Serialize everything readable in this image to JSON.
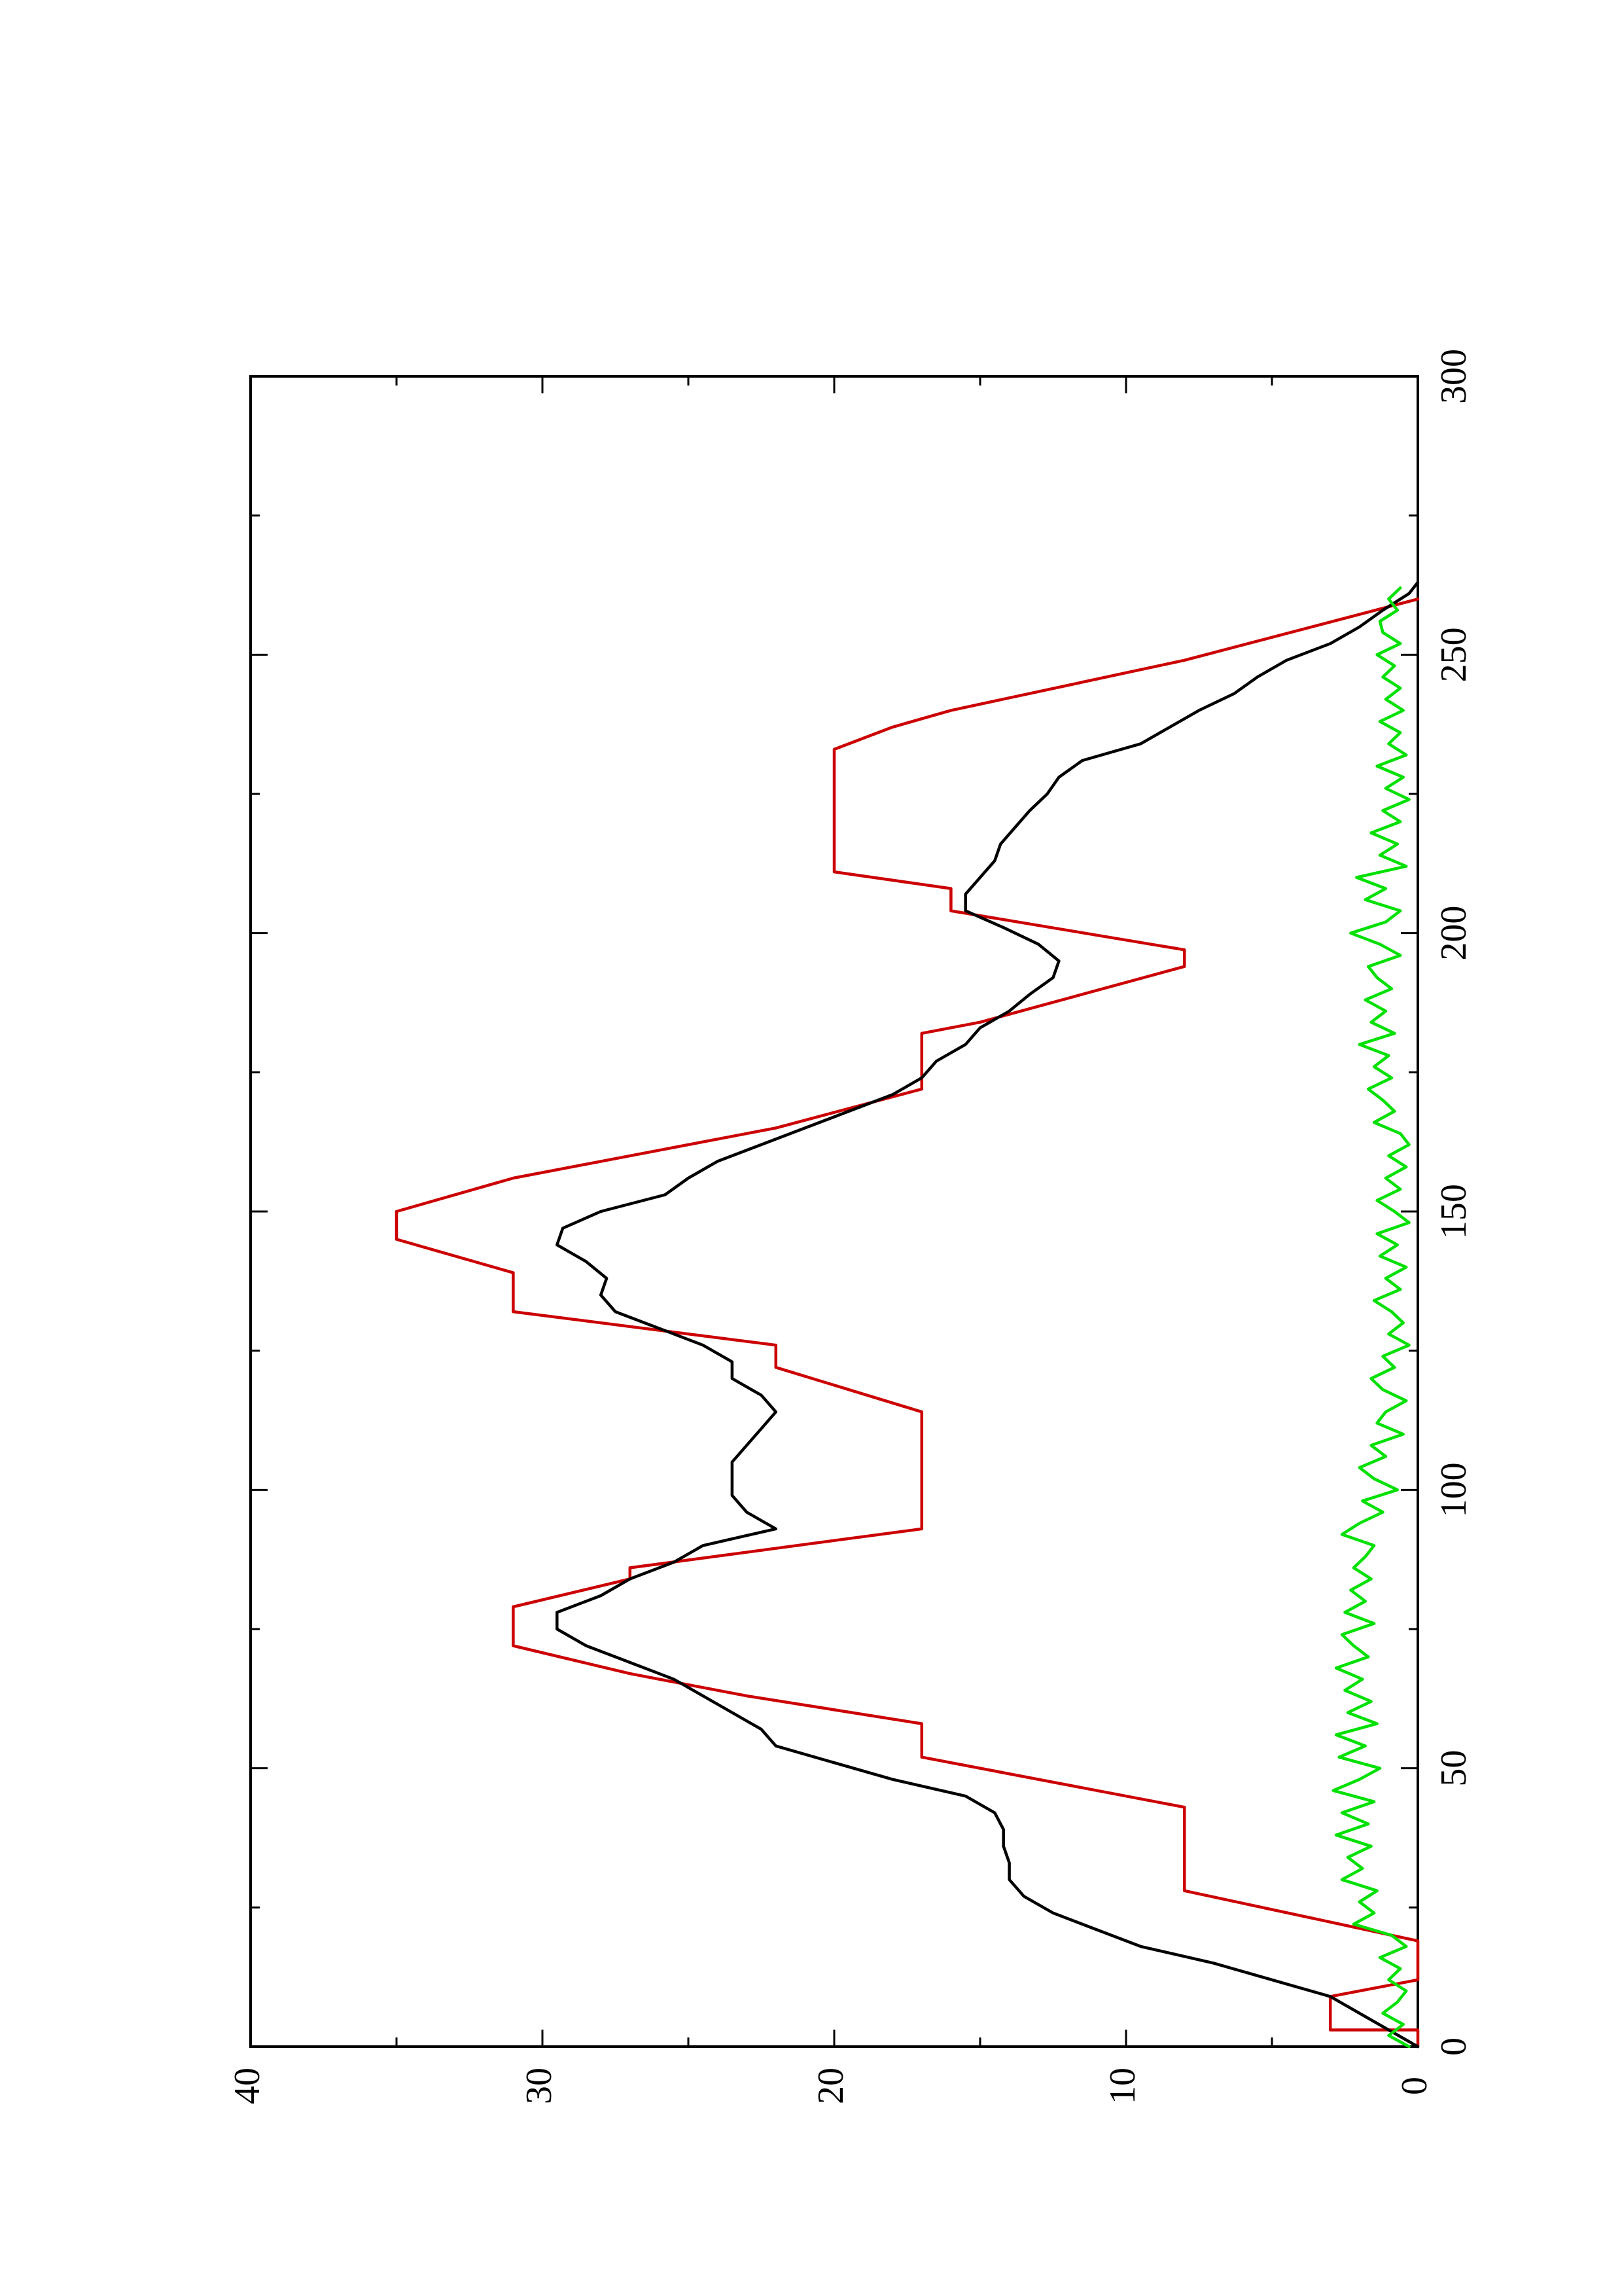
{
  "chart_data": {
    "type": "line",
    "orientation": "rotated 90 degrees counter-clockwise",
    "title": "",
    "xlabel": "",
    "ylabel": "",
    "xlim": [
      0,
      300
    ],
    "ylim": [
      0,
      40
    ],
    "x_ticks": [
      0,
      50,
      100,
      150,
      200,
      250,
      300
    ],
    "x_tick_labels": [
      "0",
      "50",
      "100",
      "150",
      "200",
      "250",
      "300"
    ],
    "y_ticks": [
      0,
      10,
      20,
      30,
      40
    ],
    "y_tick_labels": [
      "0",
      "10",
      "20",
      "30",
      "40"
    ],
    "grid": false,
    "legend": "none",
    "series": [
      {
        "color": "#cc0000",
        "style": "step",
        "x": [
          0,
          3,
          3,
          9,
          12,
          19,
          28,
          43,
          52,
          58,
          63,
          67,
          72,
          79,
          84,
          86,
          93,
          114,
          122,
          126,
          132,
          139,
          145,
          150,
          156,
          165,
          172,
          182,
          184,
          194,
          197,
          204,
          208,
          211,
          233,
          237,
          240,
          249,
          260
        ],
        "y": [
          0,
          0,
          3,
          3,
          0,
          0,
          8,
          8,
          17,
          17,
          23,
          27,
          31,
          31,
          27,
          27,
          17,
          17,
          22,
          22,
          31,
          31,
          35,
          35,
          31,
          22,
          17,
          17,
          15,
          8,
          8,
          16,
          16,
          20,
          20,
          18,
          16,
          8,
          0
        ]
      },
      {
        "color": "#000000",
        "style": "line",
        "x": [
          0,
          3,
          6,
          9,
          12,
          15,
          18,
          21,
          24,
          27,
          30,
          33,
          36,
          39,
          42,
          45,
          48,
          51,
          54,
          57,
          60,
          63,
          66,
          69,
          72,
          75,
          78,
          81,
          84,
          87,
          90,
          93,
          96,
          99,
          102,
          105,
          108,
          111,
          114,
          117,
          120,
          123,
          126,
          129,
          132,
          135,
          138,
          141,
          144,
          147,
          150,
          153,
          156,
          159,
          162,
          165,
          168,
          171,
          174,
          177,
          180,
          183,
          186,
          189,
          192,
          195,
          198,
          201,
          204,
          207,
          210,
          213,
          216,
          219,
          222,
          225,
          228,
          231,
          234,
          237,
          240,
          243,
          246,
          249,
          252,
          255,
          258,
          261,
          263
        ],
        "y": [
          0,
          1,
          2,
          3,
          5,
          7,
          9.5,
          11,
          12.5,
          13.5,
          14,
          14,
          14.2,
          14.2,
          14.5,
          15.5,
          18,
          20,
          22,
          22.5,
          23.5,
          24.5,
          25.5,
          27,
          28.5,
          29.5,
          29.5,
          28,
          27,
          25.5,
          24.5,
          22,
          23,
          23.5,
          23.5,
          23.5,
          23,
          22.5,
          22,
          22.5,
          23.5,
          23.5,
          24.5,
          26,
          27.5,
          28,
          27.8,
          28.5,
          29.5,
          29.3,
          28,
          25.8,
          25,
          24,
          22.5,
          21,
          19.5,
          18,
          17,
          16.5,
          15.5,
          15,
          14,
          13.3,
          12.5,
          12.3,
          13,
          14.2,
          15.5,
          15.5,
          15,
          14.5,
          14.3,
          13.8,
          13.3,
          12.7,
          12.3,
          11.5,
          9.5,
          8.5,
          7.5,
          6.3,
          5.5,
          4.5,
          3,
          2,
          1.2,
          0.3,
          0
        ]
      },
      {
        "color": "#00e000",
        "style": "line",
        "x": [
          0,
          2,
          4,
          6,
          8,
          10,
          12,
          14,
          16,
          18,
          20,
          22,
          24,
          26,
          28,
          30,
          32,
          34,
          36,
          38,
          40,
          42,
          44,
          46,
          48,
          50,
          52,
          54,
          56,
          58,
          60,
          62,
          64,
          66,
          68,
          70,
          72,
          74,
          76,
          78,
          80,
          82,
          84,
          86,
          88,
          90,
          92,
          94,
          96,
          98,
          100,
          102,
          104,
          106,
          108,
          110,
          112,
          114,
          116,
          118,
          120,
          122,
          124,
          126,
          128,
          130,
          132,
          134,
          136,
          138,
          140,
          142,
          144,
          146,
          148,
          150,
          152,
          154,
          156,
          158,
          160,
          162,
          164,
          166,
          168,
          170,
          172,
          174,
          176,
          178,
          180,
          182,
          184,
          186,
          188,
          190,
          192,
          194,
          196,
          198,
          200,
          202,
          204,
          206,
          208,
          210,
          212,
          214,
          216,
          218,
          220,
          222,
          224,
          226,
          228,
          230,
          232,
          234,
          236,
          238,
          240,
          242,
          244,
          246,
          248,
          250,
          252,
          254,
          256,
          258,
          260,
          262
        ],
        "y": [
          0.3,
          1,
          0.5,
          1.2,
          0.7,
          0.4,
          1,
          0.6,
          1.3,
          0.4,
          0.9,
          2.2,
          1.5,
          2,
          1.4,
          2.6,
          1.9,
          2.4,
          1.6,
          2.8,
          1.7,
          2.6,
          1.5,
          2.9,
          2,
          1.3,
          2.7,
          1.8,
          2.8,
          1.4,
          2.4,
          1.6,
          2.5,
          1.9,
          2.8,
          1.7,
          2.2,
          2.6,
          1.5,
          2.5,
          1.8,
          2.3,
          1.6,
          2.2,
          1.8,
          1.5,
          2.6,
          2,
          1.2,
          1.9,
          0.7,
          1.5,
          2,
          1.1,
          1.6,
          0.5,
          1.4,
          1.1,
          0.4,
          1.2,
          1.6,
          0.8,
          1.2,
          0.3,
          1,
          0.5,
          0.9,
          1.5,
          0.6,
          1.1,
          0.4,
          1.3,
          0.7,
          1.4,
          0.3,
          0.8,
          1.4,
          0.6,
          1.1,
          0.4,
          1,
          0.3,
          0.6,
          1.5,
          0.8,
          1.2,
          1.7,
          0.9,
          1.5,
          1,
          2,
          0.8,
          1.6,
          1.1,
          1.8,
          0.9,
          1.4,
          1.7,
          0.6,
          1.3,
          2.3,
          1.1,
          0.6,
          1.8,
          1.1,
          2.1,
          0.4,
          1.3,
          0.7,
          1.6,
          0.6,
          1.2,
          0.3,
          1.1,
          0.5,
          1.4,
          0.4,
          1,
          0.6,
          1.3,
          0.5,
          1.1,
          0.6,
          1.2,
          0.8,
          1.4,
          0.6,
          1.2,
          1.3,
          0.7,
          1,
          0.6
        ]
      }
    ]
  }
}
